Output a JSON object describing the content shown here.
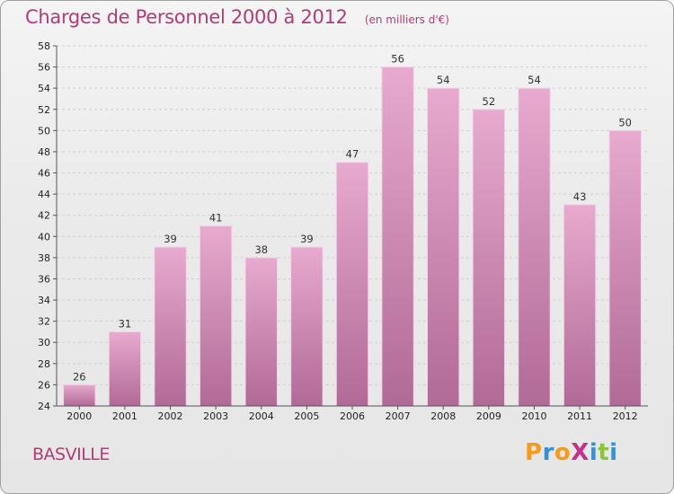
{
  "header": {
    "title": "Charges de Personnel 2000 à 2012",
    "subtitle": "(en milliers d'€)"
  },
  "commune": "BASVILLE",
  "logo": {
    "text": "ProXiti",
    "letters": [
      {
        "ch": "P",
        "color": "#f39a1f"
      },
      {
        "ch": "r",
        "color": "#3a8fd0"
      },
      {
        "ch": "o",
        "color": "#f39a1f"
      },
      {
        "ch": "X",
        "color": "#c4308a"
      },
      {
        "ch": "i",
        "color": "#3a8fd0"
      },
      {
        "ch": "t",
        "color": "#8cc43c"
      },
      {
        "ch": "i",
        "color": "#3a8fd0"
      }
    ]
  },
  "chart_data": {
    "type": "bar",
    "categories": [
      "2000",
      "2001",
      "2002",
      "2003",
      "2004",
      "2005",
      "2006",
      "2007",
      "2008",
      "2009",
      "2010",
      "2011",
      "2012"
    ],
    "values": [
      26,
      31,
      39,
      41,
      38,
      39,
      47,
      56,
      54,
      52,
      54,
      43,
      50
    ],
    "ylim": [
      24,
      58
    ],
    "yticks": [
      24,
      26,
      28,
      30,
      32,
      34,
      36,
      38,
      40,
      42,
      44,
      46,
      48,
      50,
      52,
      54,
      56,
      58
    ],
    "grid": true,
    "bar_color": "#d98fbb",
    "data_labels": true
  }
}
